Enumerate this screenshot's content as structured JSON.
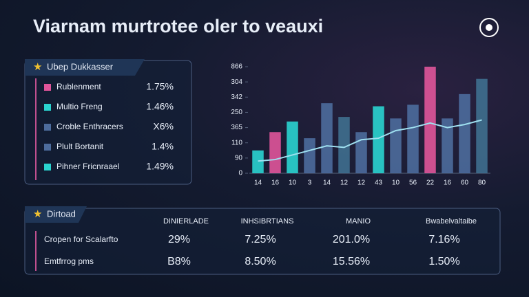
{
  "title": "Viarnam murtrotee oler to veauxi",
  "panel": {
    "header": "Ubep Dukkasser",
    "rows": [
      {
        "color": "#e0559a",
        "label": "Rublenment",
        "value": "1.75%"
      },
      {
        "color": "#2ad4d0",
        "label": "Multio Freng",
        "value": "1.46%"
      },
      {
        "color": "#4d6c9c",
        "label": "Croble Enthracers",
        "value": "X6%"
      },
      {
        "color": "#4d6c9c",
        "label": "Plult Bortanit",
        "value": "1.4%"
      },
      {
        "color": "#2ad4d0",
        "label": "Pihner Fricnraael",
        "value": "1.49%"
      }
    ]
  },
  "chart_data": {
    "type": "bar",
    "categories": [
      "14",
      "16",
      "10",
      "3",
      "14",
      "12",
      "12",
      "43",
      "10",
      "56",
      "22",
      "16",
      "60",
      "80"
    ],
    "values": [
      1.5,
      2.7,
      3.4,
      2.3,
      4.6,
      3.7,
      2.7,
      4.4,
      3.6,
      4.5,
      7.0,
      3.6,
      5.2,
      6.2
    ],
    "colors": [
      "#2ad4d0",
      "#e0559a",
      "#2ad4d0",
      "#4d6c9c",
      "#4d6c9c",
      "#3f6f8f",
      "#4d6c9c",
      "#2ad4d0",
      "#4d6c9c",
      "#4d6c9c",
      "#e0559a",
      "#4d6c9c",
      "#4d6c9c",
      "#3f6f8f"
    ],
    "line_values": [
      0.8,
      0.9,
      1.2,
      1.5,
      1.8,
      1.7,
      2.2,
      2.3,
      2.8,
      3.0,
      3.3,
      3.0,
      3.2,
      3.5
    ],
    "line_color": "#9fe0f0",
    "ylim": [
      0,
      7
    ],
    "yticks": [
      {
        "value": 0,
        "label": "0"
      },
      {
        "value": 1,
        "label": "90"
      },
      {
        "value": 2,
        "label": "110"
      },
      {
        "value": 3,
        "label": "365"
      },
      {
        "value": 4,
        "label": "250"
      },
      {
        "value": 5,
        "label": "342"
      },
      {
        "value": 6,
        "label": "304"
      },
      {
        "value": 7,
        "label": "866"
      }
    ]
  },
  "table": {
    "header": "Dirtoad",
    "columns": [
      "DINIERLADE",
      "INHSIBRTIANS",
      "MANIO",
      "Bwabelvaltaibe"
    ],
    "rows": [
      [
        "Cropen for Scalarfto",
        "29%",
        "7.25%",
        "201.0%",
        "7.16%"
      ],
      [
        "Emtfrrog pms",
        "B8%",
        "8.50%",
        "15.56%",
        "1.50%"
      ]
    ]
  }
}
